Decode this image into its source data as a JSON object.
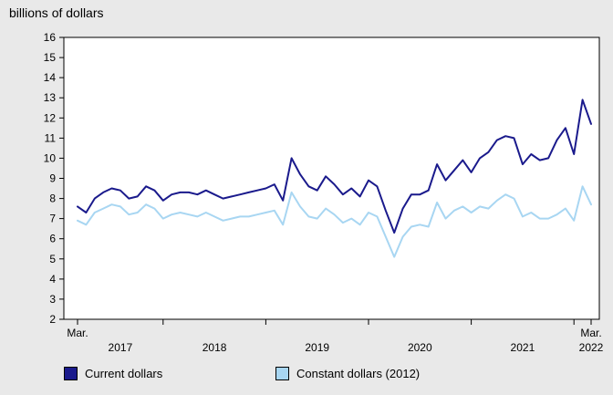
{
  "chart_data": {
    "type": "line",
    "title": "billions of dollars",
    "ylim": [
      2,
      16
    ],
    "ytick_step": 1,
    "yticks": [
      2,
      3,
      4,
      5,
      6,
      7,
      8,
      9,
      10,
      11,
      12,
      13,
      14,
      15,
      16
    ],
    "grid": false,
    "legend_position": "bottom",
    "x_frequency": "monthly",
    "x_range": [
      "2017-03",
      "2022-03"
    ],
    "start_month_index": 2,
    "x_axis": {
      "start_tick_label": "Mar.",
      "end_tick_label": "Mar.",
      "year_labels": [
        "2017",
        "2018",
        "2019",
        "2020",
        "2021"
      ],
      "end_year_label": "2022"
    },
    "series": [
      {
        "name": "Current dollars",
        "color": "#1a1a8c",
        "values": [
          7.6,
          7.3,
          8.0,
          8.3,
          8.5,
          8.4,
          8.0,
          8.1,
          8.6,
          8.4,
          7.9,
          8.2,
          8.3,
          8.3,
          8.2,
          8.4,
          8.2,
          8.0,
          8.1,
          8.2,
          8.3,
          8.4,
          8.5,
          8.7,
          7.9,
          10.0,
          9.2,
          8.6,
          8.4,
          9.1,
          8.7,
          8.2,
          8.5,
          8.1,
          8.9,
          8.6,
          7.4,
          6.3,
          7.5,
          8.2,
          8.2,
          8.4,
          9.7,
          8.9,
          9.4,
          9.9,
          9.3,
          10.0,
          10.3,
          10.9,
          11.1,
          11.0,
          9.7,
          10.2,
          9.9,
          10.0,
          10.9,
          11.5,
          10.2,
          12.9,
          11.7
        ]
      },
      {
        "name": "Constant dollars (2012)",
        "color": "#a8d6f2",
        "values": [
          6.9,
          6.7,
          7.3,
          7.5,
          7.7,
          7.6,
          7.2,
          7.3,
          7.7,
          7.5,
          7.0,
          7.2,
          7.3,
          7.2,
          7.1,
          7.3,
          7.1,
          6.9,
          7.0,
          7.1,
          7.1,
          7.2,
          7.3,
          7.4,
          6.7,
          8.3,
          7.6,
          7.1,
          7.0,
          7.5,
          7.2,
          6.8,
          7.0,
          6.7,
          7.3,
          7.1,
          6.1,
          5.1,
          6.1,
          6.6,
          6.7,
          6.6,
          7.8,
          7.0,
          7.4,
          7.6,
          7.3,
          7.6,
          7.5,
          7.9,
          8.2,
          8.0,
          7.1,
          7.3,
          7.0,
          7.0,
          7.2,
          7.5,
          6.9,
          8.6,
          7.7
        ]
      }
    ]
  }
}
